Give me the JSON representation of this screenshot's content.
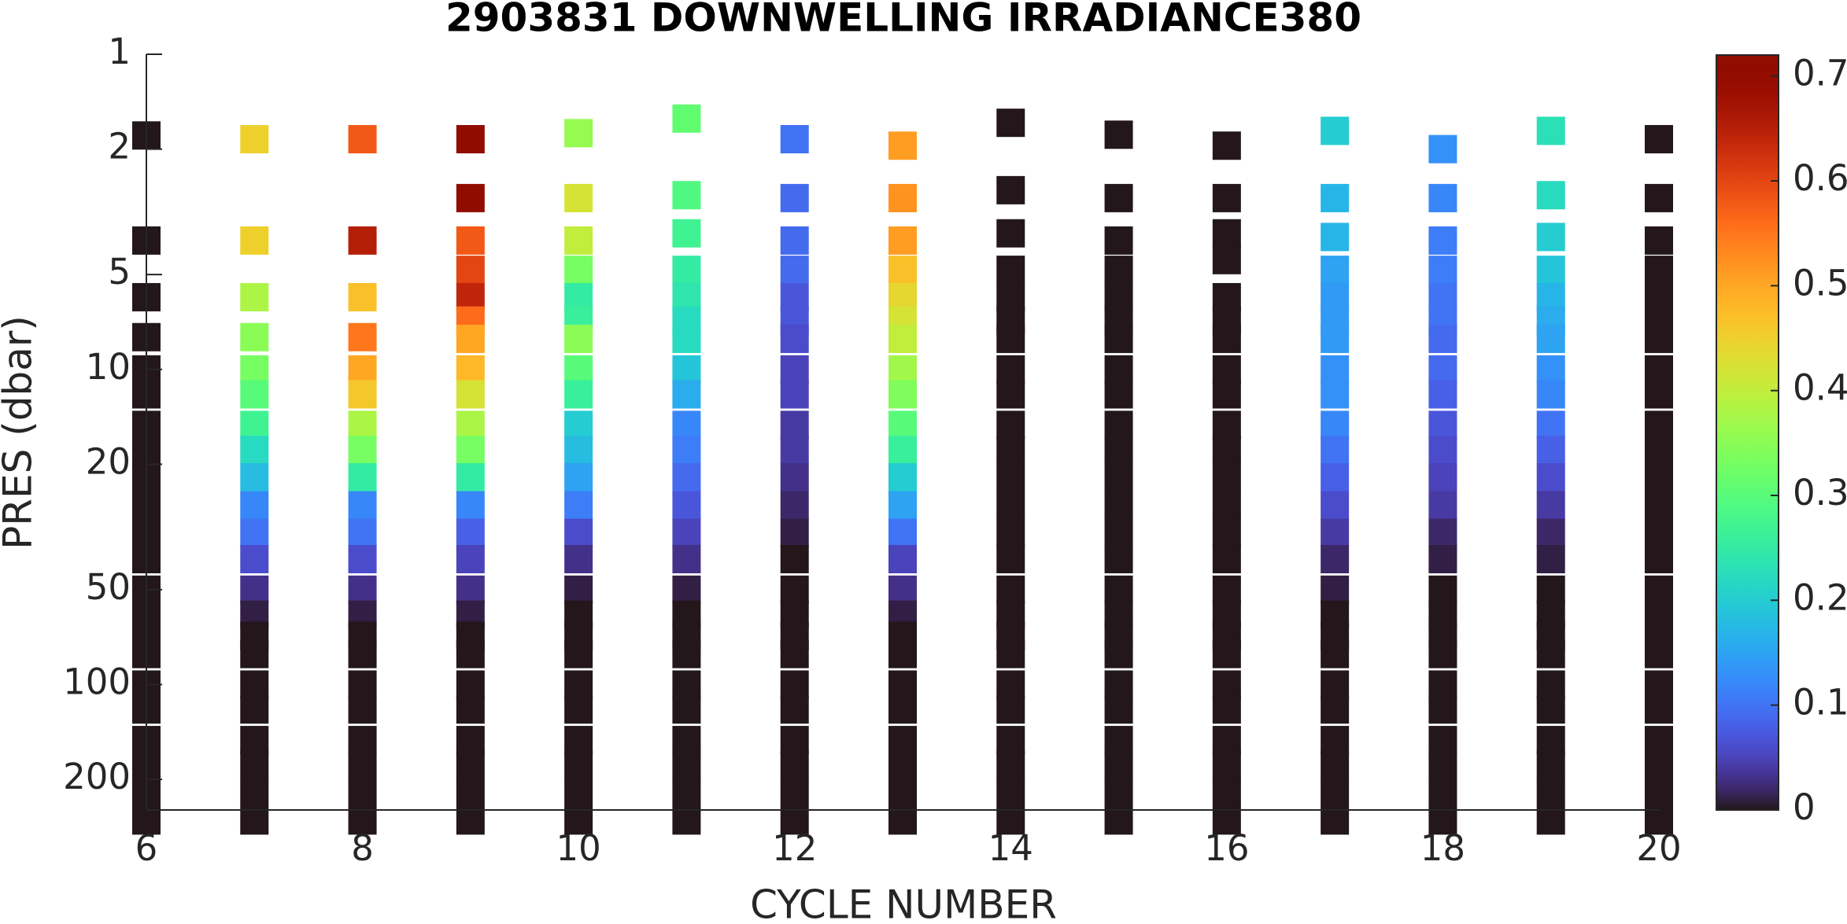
{
  "chart_data": {
    "type": "scatter",
    "title": "2903831  DOWNWELLING IRRADIANCE380",
    "xlabel": "CYCLE NUMBER",
    "ylabel": "PRES (dbar)",
    "xlim": [
      6,
      20
    ],
    "xticks": [
      6,
      8,
      10,
      12,
      14,
      16,
      18,
      20
    ],
    "ylim": [
      1,
      250
    ],
    "yticks": [
      1,
      2,
      5,
      10,
      20,
      50,
      100,
      200
    ],
    "yscale": "log",
    "y_reversed": true,
    "colormap": "turbo",
    "clim": [
      0,
      0.72
    ],
    "cticks": [
      0,
      0.1,
      0.2,
      0.3,
      0.4,
      0.5,
      0.6,
      0.7
    ],
    "profiles": [
      {
        "cycle": 6,
        "pres": [
          1.81,
          3.9,
          5.9,
          7.9,
          10,
          12,
          15,
          18,
          22,
          27,
          33,
          40,
          50,
          60,
          70,
          80,
          100,
          120,
          150,
          180,
          220,
          270
        ],
        "value": [
          0,
          0,
          0,
          0,
          0,
          0,
          0,
          0,
          0,
          0,
          0,
          0,
          0,
          0,
          0,
          0,
          0,
          0,
          0,
          0,
          0,
          0
        ]
      },
      {
        "cycle": 7,
        "pres": [
          1.86,
          3.9,
          5.9,
          7.9,
          10,
          12,
          15,
          18,
          22,
          27,
          33,
          40,
          50,
          60,
          70,
          80,
          100,
          120,
          150,
          180,
          220,
          270
        ],
        "value": [
          0.45,
          0.45,
          0.38,
          0.35,
          0.33,
          0.3,
          0.27,
          0.22,
          0.18,
          0.12,
          0.1,
          0.06,
          0.03,
          0.01,
          0,
          0,
          0,
          0,
          0,
          0,
          0,
          0
        ]
      },
      {
        "cycle": 8,
        "pres": [
          1.86,
          3.9,
          5.9,
          7.9,
          10,
          12,
          15,
          18,
          22,
          27,
          33,
          40,
          50,
          60,
          70,
          80,
          100,
          120,
          150,
          180,
          220,
          270
        ],
        "value": [
          0.58,
          0.65,
          0.47,
          0.55,
          0.5,
          0.46,
          0.38,
          0.33,
          0.25,
          0.12,
          0.1,
          0.06,
          0.03,
          0.01,
          0,
          0,
          0,
          0,
          0,
          0,
          0,
          0
        ]
      },
      {
        "cycle": 9,
        "pres": [
          1.86,
          2.86,
          3.9,
          4.83,
          5.9,
          7,
          8,
          10,
          12,
          15,
          18,
          22,
          27,
          33,
          40,
          50,
          60,
          70,
          80,
          100,
          120,
          150,
          180,
          220,
          270
        ],
        "value": [
          0.71,
          0.71,
          0.58,
          0.6,
          0.64,
          0.56,
          0.5,
          0.48,
          0.42,
          0.38,
          0.33,
          0.25,
          0.12,
          0.08,
          0.05,
          0.03,
          0.01,
          0,
          0,
          0,
          0,
          0,
          0,
          0,
          0
        ]
      },
      {
        "cycle": 10,
        "pres": [
          1.78,
          2.86,
          3.9,
          4.83,
          5.9,
          7,
          8,
          10,
          12,
          15,
          18,
          22,
          27,
          33,
          40,
          50,
          60,
          70,
          80,
          100,
          120,
          150,
          180,
          220,
          270
        ],
        "value": [
          0.36,
          0.42,
          0.4,
          0.33,
          0.25,
          0.26,
          0.35,
          0.3,
          0.26,
          0.2,
          0.18,
          0.15,
          0.11,
          0.06,
          0.03,
          0.01,
          0,
          0,
          0,
          0,
          0,
          0,
          0,
          0,
          0
        ]
      },
      {
        "cycle": 11,
        "pres": [
          1.6,
          2.8,
          3.7,
          4.83,
          5.9,
          7,
          8,
          10,
          12,
          15,
          18,
          22,
          27,
          33,
          40,
          50,
          60,
          70,
          80,
          100,
          120,
          150,
          180,
          220,
          270
        ],
        "value": [
          0.31,
          0.29,
          0.27,
          0.25,
          0.24,
          0.22,
          0.22,
          0.19,
          0.16,
          0.12,
          0.11,
          0.09,
          0.07,
          0.05,
          0.03,
          0.01,
          0,
          0,
          0,
          0,
          0,
          0,
          0,
          0,
          0
        ]
      },
      {
        "cycle": 12,
        "pres": [
          1.86,
          2.86,
          3.9,
          4.83,
          5.9,
          7,
          8,
          10,
          12,
          15,
          18,
          22,
          27,
          33,
          40,
          50,
          60,
          70,
          80,
          100,
          120,
          150,
          180,
          220,
          270
        ],
        "value": [
          0.1,
          0.09,
          0.09,
          0.09,
          0.07,
          0.07,
          0.06,
          0.05,
          0.05,
          0.04,
          0.04,
          0.03,
          0.02,
          0.01,
          0,
          0,
          0,
          0,
          0,
          0,
          0,
          0,
          0,
          0,
          0
        ]
      },
      {
        "cycle": 13,
        "pres": [
          1.95,
          2.86,
          3.9,
          4.83,
          5.9,
          7,
          8,
          10,
          12,
          15,
          18,
          22,
          27,
          33,
          40,
          50,
          60,
          70,
          80,
          100,
          120,
          150,
          180,
          220,
          270
        ],
        "value": [
          0.51,
          0.52,
          0.51,
          0.47,
          0.44,
          0.42,
          0.4,
          0.37,
          0.34,
          0.3,
          0.26,
          0.2,
          0.15,
          0.1,
          0.05,
          0.03,
          0.01,
          0,
          0,
          0,
          0,
          0,
          0,
          0,
          0
        ]
      },
      {
        "cycle": 14,
        "pres": [
          1.65,
          2.7,
          3.7,
          4.83,
          5.9,
          7,
          8,
          10,
          12,
          15,
          18,
          22,
          27,
          33,
          40,
          50,
          60,
          70,
          80,
          100,
          120,
          150,
          180,
          220,
          270
        ],
        "value": [
          0,
          0,
          0,
          0,
          0,
          0,
          0,
          0,
          0,
          0,
          0,
          0,
          0,
          0,
          0,
          0,
          0,
          0,
          0,
          0,
          0,
          0,
          0,
          0,
          0
        ]
      },
      {
        "cycle": 15,
        "pres": [
          1.8,
          2.86,
          3.9,
          4.83,
          5.9,
          7,
          8,
          10,
          12,
          15,
          18,
          22,
          27,
          33,
          40,
          50,
          60,
          70,
          80,
          100,
          120,
          150,
          180,
          220,
          270
        ],
        "value": [
          0,
          0,
          0,
          0,
          0,
          0,
          0,
          0,
          0,
          0,
          0,
          0,
          0,
          0,
          0,
          0,
          0,
          0,
          0,
          0,
          0,
          0,
          0,
          0,
          0
        ]
      },
      {
        "cycle": 16,
        "pres": [
          1.95,
          2.86,
          3.7,
          4.5,
          5.9,
          7,
          8,
          10,
          12,
          15,
          18,
          22,
          27,
          33,
          40,
          50,
          60,
          70,
          80,
          100,
          120,
          150,
          180,
          220,
          270
        ],
        "value": [
          0,
          0,
          0,
          0,
          0,
          0,
          0,
          0,
          0,
          0,
          0,
          0,
          0,
          0,
          0,
          0,
          0,
          0,
          0,
          0,
          0,
          0,
          0,
          0,
          0
        ]
      },
      {
        "cycle": 17,
        "pres": [
          1.75,
          2.86,
          3.8,
          4.83,
          5.9,
          7,
          8,
          10,
          12,
          15,
          18,
          22,
          27,
          33,
          40,
          50,
          60,
          70,
          80,
          100,
          120,
          150,
          180,
          220,
          270
        ],
        "value": [
          0.2,
          0.17,
          0.17,
          0.15,
          0.14,
          0.14,
          0.14,
          0.13,
          0.13,
          0.12,
          0.1,
          0.08,
          0.06,
          0.04,
          0.02,
          0.01,
          0,
          0,
          0,
          0,
          0,
          0,
          0,
          0,
          0
        ]
      },
      {
        "cycle": 18,
        "pres": [
          2.0,
          2.86,
          3.9,
          4.83,
          5.9,
          7,
          8,
          10,
          12,
          15,
          18,
          22,
          27,
          33,
          40,
          50,
          60,
          70,
          80,
          100,
          120,
          150,
          180,
          220,
          270
        ],
        "value": [
          0.13,
          0.12,
          0.11,
          0.11,
          0.1,
          0.1,
          0.09,
          0.09,
          0.08,
          0.07,
          0.06,
          0.05,
          0.04,
          0.02,
          0.01,
          0,
          0,
          0,
          0,
          0,
          0,
          0,
          0,
          0,
          0
        ]
      },
      {
        "cycle": 19,
        "pres": [
          1.75,
          2.8,
          3.8,
          4.83,
          5.9,
          7,
          8,
          10,
          12,
          15,
          18,
          22,
          27,
          33,
          40,
          50,
          60,
          70,
          80,
          100,
          120,
          150,
          180,
          220,
          270
        ],
        "value": [
          0.23,
          0.22,
          0.2,
          0.19,
          0.17,
          0.16,
          0.15,
          0.13,
          0.12,
          0.1,
          0.08,
          0.06,
          0.04,
          0.02,
          0.01,
          0,
          0,
          0,
          0,
          0,
          0,
          0,
          0,
          0,
          0
        ]
      },
      {
        "cycle": 20,
        "pres": [
          1.86,
          2.86,
          3.9,
          4.83,
          5.9,
          7,
          8,
          10,
          12,
          15,
          18,
          22,
          27,
          33,
          40,
          50,
          60,
          70,
          80,
          100,
          120,
          150,
          180,
          220,
          270
        ],
        "value": [
          0,
          0,
          0,
          0,
          0,
          0,
          0,
          0,
          0,
          0,
          0,
          0,
          0,
          0,
          0,
          0,
          0,
          0,
          0,
          0,
          0,
          0,
          0,
          0,
          0
        ]
      }
    ]
  }
}
